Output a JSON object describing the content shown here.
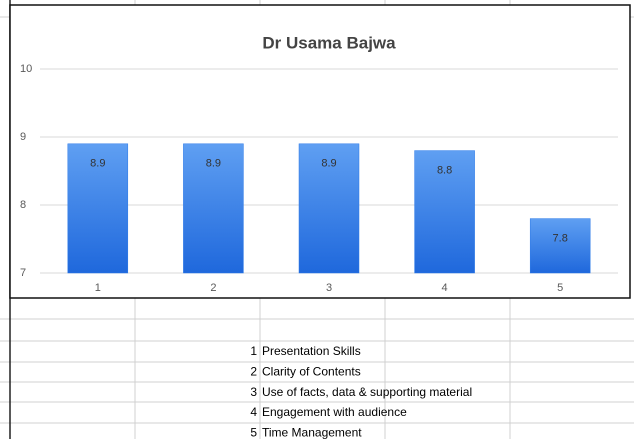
{
  "chart_data": {
    "type": "bar",
    "title": "Dr Usama Bajwa",
    "categories": [
      "1",
      "2",
      "3",
      "4",
      "5"
    ],
    "values": [
      8.9,
      8.9,
      8.9,
      8.8,
      7.8
    ],
    "color": "#2a78e8",
    "ylim": [
      7,
      10
    ],
    "yticks": [
      7,
      8,
      9,
      10
    ],
    "grid": true
  },
  "table": {
    "rows": [
      [
        "1",
        "Presentation Skills"
      ],
      [
        "2",
        "Clarity of  Contents"
      ],
      [
        "3",
        "Use of facts, data & supporting material"
      ],
      [
        "4",
        "Engagement with audience"
      ],
      [
        "5",
        "Time Management"
      ]
    ]
  }
}
